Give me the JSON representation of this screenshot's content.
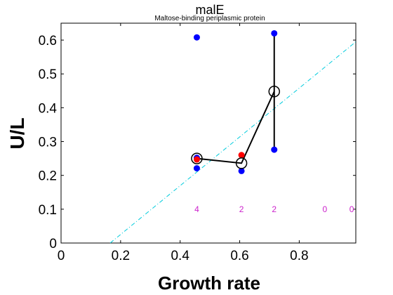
{
  "chart_data": {
    "type": "scatter",
    "title": "malE",
    "subtitle": "Maltose-binding periplasmic protein",
    "xlabel": "Growth rate",
    "ylabel": "U/L",
    "xlim": [
      0,
      0.99
    ],
    "ylim": [
      0,
      0.65
    ],
    "xticks": [
      {
        "value": 0,
        "label": "0"
      },
      {
        "value": 0.2,
        "label": "0.2"
      },
      {
        "value": 0.4,
        "label": "0.4"
      },
      {
        "value": 0.6,
        "label": "0.6"
      },
      {
        "value": 0.8,
        "label": "0.8"
      }
    ],
    "yticks": [
      {
        "value": 0,
        "label": "0"
      },
      {
        "value": 0.1,
        "label": "0.1"
      },
      {
        "value": 0.2,
        "label": "0.2"
      },
      {
        "value": 0.3,
        "label": "0.3"
      },
      {
        "value": 0.4,
        "label": "0.4"
      },
      {
        "value": 0.5,
        "label": "0.5"
      },
      {
        "value": 0.6,
        "label": "0.6"
      }
    ],
    "grid": false,
    "blue_points": [
      {
        "x": 0.456,
        "y": 0.608
      },
      {
        "x": 0.456,
        "y": 0.252
      },
      {
        "x": 0.456,
        "y": 0.221
      },
      {
        "x": 0.606,
        "y": 0.213
      },
      {
        "x": 0.716,
        "y": 0.62
      },
      {
        "x": 0.716,
        "y": 0.276
      }
    ],
    "red_points": [
      {
        "x": 0.456,
        "y": 0.247
      },
      {
        "x": 0.606,
        "y": 0.26
      }
    ],
    "mean_line": [
      {
        "x": 0.456,
        "y": 0.25
      },
      {
        "x": 0.606,
        "y": 0.236
      },
      {
        "x": 0.716,
        "y": 0.448
      }
    ],
    "range_bars": [
      {
        "x": 0.716,
        "ymin": 0.276,
        "ymax": 0.62
      }
    ],
    "fit_line": [
      {
        "x": 0.165,
        "y": 0.0
      },
      {
        "x": 0.99,
        "y": 0.595
      }
    ],
    "counts": [
      {
        "x": 0.456,
        "label": "4"
      },
      {
        "x": 0.606,
        "label": "2"
      },
      {
        "x": 0.716,
        "label": "2"
      },
      {
        "x": 0.886,
        "label": "0"
      },
      {
        "x": 0.976,
        "label": "0"
      }
    ],
    "count_y": 0.1,
    "colors": {
      "blue": "#0000ff",
      "red": "#ff0000",
      "fit": "#00ccdd",
      "count": "#cc22cc",
      "line": "#000000"
    }
  }
}
